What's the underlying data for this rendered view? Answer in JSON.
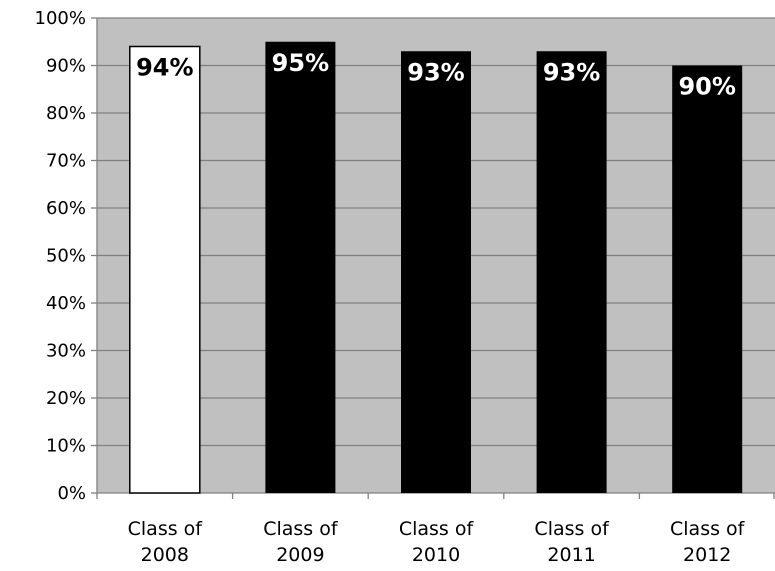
{
  "chart_data": {
    "type": "bar",
    "title": "",
    "xlabel": "",
    "ylabel": "",
    "categories": [
      [
        "Class of",
        "2008"
      ],
      [
        "Class of",
        "2009"
      ],
      [
        "Class of",
        "2010"
      ],
      [
        "Class of",
        "2011"
      ],
      [
        "Class of",
        "2012"
      ]
    ],
    "values": [
      94,
      95,
      93,
      93,
      90
    ],
    "data_labels": [
      "94%",
      "95%",
      "93%",
      "93%",
      "90%"
    ],
    "ylim": [
      0,
      100
    ],
    "yticks": [
      0,
      10,
      20,
      30,
      40,
      50,
      60,
      70,
      80,
      90,
      100
    ],
    "ytick_labels": [
      "0%",
      "10%",
      "20%",
      "30%",
      "40%",
      "50%",
      "60%",
      "70%",
      "80%",
      "90%",
      "100%"
    ],
    "grid": true,
    "legend": "none",
    "colors": {
      "plot_background": "#c0c0c0",
      "gridline": "#808080",
      "highlight_bar": "#ffffff",
      "bar": "#000000",
      "highlight_label": "#000000",
      "label": "#ffffff"
    },
    "highlight_index": 0
  }
}
